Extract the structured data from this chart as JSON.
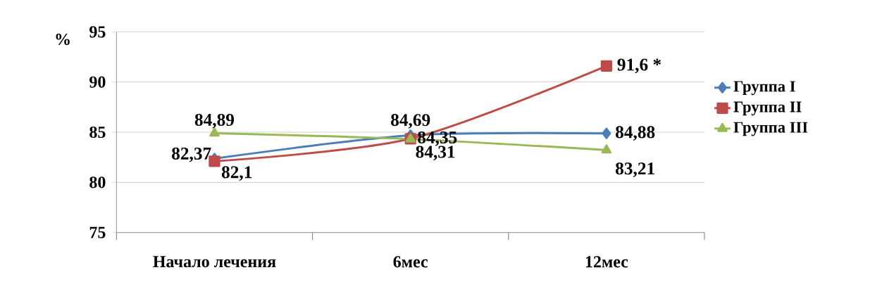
{
  "chart_data": {
    "type": "line",
    "ylabel": "%",
    "categories": [
      "Начало лечения",
      "6мес",
      "12мес"
    ],
    "series": [
      {
        "name": "Группа I",
        "color": "#4a7ebb",
        "marker": "diamond",
        "values": [
          82.37,
          84.69,
          84.88
        ],
        "value_labels": [
          "82,37",
          "84,69",
          "84,88"
        ]
      },
      {
        "name": "Группа II",
        "color": "#be4b48",
        "marker": "square",
        "values": [
          82.1,
          84.35,
          91.6
        ],
        "value_labels": [
          "82,1",
          "84,35",
          "91,6 *"
        ]
      },
      {
        "name": "Группа III",
        "color": "#98b954",
        "marker": "triangle",
        "values": [
          84.89,
          84.31,
          83.21
        ],
        "value_labels": [
          "84,89",
          "84,31",
          "83,21"
        ]
      }
    ],
    "ylim": [
      75,
      95
    ],
    "yticks": [
      75,
      80,
      85,
      90,
      95
    ],
    "grid": "y",
    "legend": "right",
    "line_style": "solid"
  }
}
